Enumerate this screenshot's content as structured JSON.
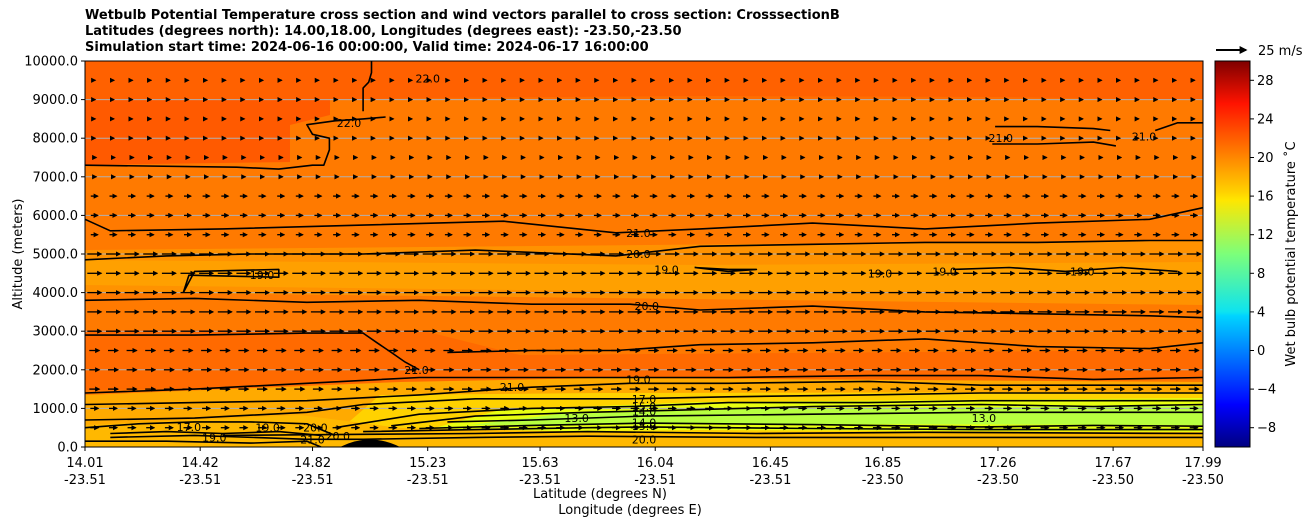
{
  "title_lines": [
    "Wetbulb Potential Temperature cross section and wind vectors parallel to cross section: CrosssectionB",
    "Latitudes (degrees north): 14.00,18.00, Longitudes (degrees east): -23.50,-23.50",
    "Simulation start time: 2024-06-16 00:00:00, Valid time: 2024-06-17 16:00:00"
  ],
  "chart_data": {
    "type": "heatmap",
    "subtype": "filled contour cross section with wind vectors",
    "ylabel": "Altitude (meters)",
    "xlabel_lines": [
      "Latitude (degrees N)",
      "Longitude (degrees E)"
    ],
    "ylim": [
      0,
      10000
    ],
    "y_ticks": [
      "0.0",
      "1000.0",
      "2000.0",
      "3000.0",
      "4000.0",
      "5000.0",
      "6000.0",
      "7000.0",
      "8000.0",
      "9000.0",
      "10000.0"
    ],
    "x_ticks": [
      {
        "lat": "14.01",
        "lon": "-23.51"
      },
      {
        "lat": "14.42",
        "lon": "-23.51"
      },
      {
        "lat": "14.82",
        "lon": "-23.51"
      },
      {
        "lat": "15.23",
        "lon": "-23.51"
      },
      {
        "lat": "15.63",
        "lon": "-23.51"
      },
      {
        "lat": "16.04",
        "lon": "-23.51"
      },
      {
        "lat": "16.45",
        "lon": "-23.51"
      },
      {
        "lat": "16.85",
        "lon": "-23.50"
      },
      {
        "lat": "17.26",
        "lon": "-23.50"
      },
      {
        "lat": "17.67",
        "lon": "-23.50"
      },
      {
        "lat": "17.99",
        "lon": "-23.50"
      }
    ],
    "grid": "horizontal",
    "colorbar": {
      "label": "Wet bulb potential temperature $^\\circ$C",
      "label_display": "Wet bulb potential temperature ˚C",
      "range": [
        -10,
        30
      ],
      "ticks": [
        "−8",
        "−4",
        "0",
        "4",
        "8",
        "12",
        "16",
        "20",
        "24",
        "28"
      ],
      "colormap": "jet"
    },
    "quiver_key": {
      "label": "25 m/s",
      "speed_ms": 25
    },
    "contour_labels": [
      {
        "text": "22.0",
        "x": 15.23,
        "y": 9550
      },
      {
        "text": "22.0",
        "x": 14.95,
        "y": 8400
      },
      {
        "text": "21.0",
        "x": 17.27,
        "y": 8000
      },
      {
        "text": "21.0",
        "x": 17.78,
        "y": 8050
      },
      {
        "text": "21.0",
        "x": 15.98,
        "y": 5550
      },
      {
        "text": "20.0",
        "x": 15.98,
        "y": 5000
      },
      {
        "text": "19.0",
        "x": 14.64,
        "y": 4450
      },
      {
        "text": "19.0",
        "x": 16.08,
        "y": 4600
      },
      {
        "text": "19.0",
        "x": 16.84,
        "y": 4500
      },
      {
        "text": "19.0",
        "x": 17.07,
        "y": 4550
      },
      {
        "text": "19.0",
        "x": 17.56,
        "y": 4550
      },
      {
        "text": "20.0",
        "x": 16.01,
        "y": 3650
      },
      {
        "text": "21.0",
        "x": 15.19,
        "y": 2000
      },
      {
        "text": "21.0",
        "x": 15.53,
        "y": 1550
      },
      {
        "text": "19.0",
        "x": 15.98,
        "y": 1750
      },
      {
        "text": "17.0",
        "x": 16.0,
        "y": 1250
      },
      {
        "text": "15.0",
        "x": 16.0,
        "y": 1050
      },
      {
        "text": "14.0",
        "x": 16.0,
        "y": 920
      },
      {
        "text": "13.0",
        "x": 15.76,
        "y": 750
      },
      {
        "text": "14.0",
        "x": 16.0,
        "y": 640
      },
      {
        "text": "15.0",
        "x": 16.0,
        "y": 540
      },
      {
        "text": "20.0",
        "x": 16.0,
        "y": 200
      },
      {
        "text": "17.0",
        "x": 14.38,
        "y": 520
      },
      {
        "text": "19.0",
        "x": 14.47,
        "y": 240
      },
      {
        "text": "19.0",
        "x": 14.66,
        "y": 500
      },
      {
        "text": "20.0",
        "x": 14.83,
        "y": 500
      },
      {
        "text": "21.0",
        "x": 14.82,
        "y": 200
      },
      {
        "text": "20.0",
        "x": 14.91,
        "y": 280
      },
      {
        "text": "13.0",
        "x": 17.21,
        "y": 750
      }
    ],
    "series": [
      {
        "level": 22.0,
        "x": [
          14.01,
          14.55,
          14.7,
          14.82,
          14.86,
          14.88,
          14.88,
          14.82,
          14.8,
          14.9,
          15.0,
          15.08
        ],
        "y": [
          7300,
          7250,
          7200,
          7300,
          7300,
          7700,
          8000,
          8100,
          8350,
          8450,
          8500,
          8550
        ]
      },
      {
        "level": 22.0,
        "x": [
          15.0,
          15.0,
          15.02,
          15.03,
          15.03
        ],
        "y": [
          8700,
          9300,
          9450,
          9700,
          10000
        ]
      },
      {
        "level": 21.0,
        "x": [
          14.01,
          14.1,
          14.5,
          15.0,
          15.5,
          15.9,
          16.2,
          16.6,
          17.0,
          17.4,
          17.8,
          17.99
        ],
        "y": [
          5900,
          5600,
          5650,
          5750,
          5850,
          5550,
          5650,
          5800,
          5650,
          5800,
          5900,
          6200
        ]
      },
      {
        "level": 21.0,
        "x": [
          17.24,
          17.4,
          17.6,
          17.68
        ],
        "y": [
          7850,
          7850,
          7900,
          7800
        ]
      },
      {
        "level": 21.0,
        "x": [
          17.25,
          17.4,
          17.6,
          17.66
        ],
        "y": [
          8300,
          8300,
          8250,
          8200
        ]
      },
      {
        "level": 21.0,
        "x": [
          17.82,
          17.9,
          17.99
        ],
        "y": [
          8200,
          8400,
          8400
        ]
      },
      {
        "level": 20.0,
        "x": [
          14.01,
          14.3,
          14.6,
          15.0,
          15.4,
          15.9,
          16.2,
          16.6,
          17.0,
          17.4,
          17.8,
          17.99
        ],
        "y": [
          4850,
          4950,
          5000,
          5000,
          5100,
          4950,
          5200,
          5250,
          5300,
          5300,
          5350,
          5350
        ]
      },
      {
        "level": 20.0,
        "x": [
          14.01,
          14.4,
          14.8,
          15.2,
          15.6,
          15.95,
          16.2,
          16.6,
          17.0,
          17.4,
          17.8,
          17.99
        ],
        "y": [
          3800,
          3850,
          3750,
          3800,
          3700,
          3700,
          3550,
          3650,
          3500,
          3450,
          3400,
          3350
        ]
      },
      {
        "level": 19.0,
        "x": [
          14.36,
          14.4,
          14.7,
          14.7,
          14.38,
          14.36
        ],
        "y": [
          4000,
          4550,
          4600,
          4400,
          4450,
          4000
        ]
      },
      {
        "level": 19.0,
        "x": [
          16.18,
          16.3,
          16.4,
          16.3,
          16.18
        ],
        "y": [
          4650,
          4600,
          4600,
          4550,
          4650
        ]
      },
      {
        "level": 19.0,
        "x": [
          17.1,
          17.3,
          17.5,
          17.7,
          17.9
        ],
        "y": [
          4600,
          4650,
          4550,
          4650,
          4550
        ]
      },
      {
        "level": 21.0,
        "x": [
          14.01,
          14.4,
          14.8,
          15.0,
          15.05,
          15.1,
          15.15,
          15.2
        ],
        "y": [
          2900,
          2900,
          2950,
          2950,
          2700,
          2450,
          2200,
          2000
        ]
      },
      {
        "level": 21.0,
        "x": [
          15.3,
          15.6,
          15.9,
          16.2,
          16.6,
          17.0,
          17.4,
          17.8,
          17.99
        ],
        "y": [
          2450,
          2500,
          2500,
          2650,
          2700,
          2800,
          2600,
          2550,
          2700
        ]
      },
      {
        "level": 20.0,
        "x": [
          14.01,
          14.4,
          14.8,
          15.2,
          15.6,
          15.95,
          16.3,
          16.8,
          17.2,
          17.6,
          17.99
        ],
        "y": [
          1400,
          1500,
          1650,
          1800,
          1800,
          1800,
          1800,
          1850,
          1850,
          1750,
          1800
        ]
      },
      {
        "level": 19.0,
        "x": [
          14.01,
          14.4,
          14.8,
          15.2,
          15.6,
          15.95,
          16.3,
          16.8,
          17.2,
          17.6,
          17.99
        ],
        "y": [
          1100,
          1150,
          1200,
          1350,
          1550,
          1650,
          1650,
          1700,
          1600,
          1600,
          1600
        ]
      },
      {
        "level": 17.0,
        "x": [
          14.01,
          14.4,
          14.8,
          15.0,
          15.4,
          15.95,
          16.3,
          16.8,
          17.2,
          17.6,
          17.99
        ],
        "y": [
          700,
          750,
          900,
          1100,
          1250,
          1250,
          1300,
          1350,
          1400,
          1400,
          1400
        ]
      },
      {
        "level": 15.0,
        "x": [
          14.9,
          15.2,
          15.6,
          15.95,
          16.3,
          16.8,
          17.2,
          17.6,
          17.99
        ],
        "y": [
          500,
          850,
          1000,
          1050,
          1150,
          1150,
          1200,
          1200,
          1200
        ]
      },
      {
        "level": 14.0,
        "x": [
          15.1,
          15.4,
          15.8,
          16.1,
          16.6,
          17.2,
          17.6,
          17.99
        ],
        "y": [
          550,
          800,
          900,
          950,
          1050,
          1100,
          1050,
          1100
        ]
      },
      {
        "level": 13.0,
        "x": [
          15.3,
          15.6,
          16.0,
          16.6,
          17.2,
          17.6,
          17.99
        ],
        "y": [
          650,
          700,
          800,
          850,
          900,
          900,
          900
        ]
      },
      {
        "level": 14.0,
        "x": [
          15.2,
          15.6,
          16.0,
          16.6,
          17.2,
          17.6,
          17.99
        ],
        "y": [
          480,
          560,
          620,
          580,
          520,
          560,
          540
        ]
      },
      {
        "level": 15.0,
        "x": [
          15.0,
          15.4,
          15.8,
          16.0,
          16.6,
          17.2,
          17.99
        ],
        "y": [
          400,
          450,
          500,
          520,
          480,
          450,
          450
        ]
      },
      {
        "level": 17.0,
        "x": [
          14.5,
          15.0,
          15.4,
          15.8,
          16.4,
          17.0,
          17.6,
          17.99
        ],
        "y": [
          300,
          330,
          350,
          400,
          350,
          380,
          360,
          350
        ]
      },
      {
        "level": 19.0,
        "x": [
          14.1,
          14.4,
          14.8,
          15.0,
          15.4,
          15.8,
          16.4,
          17.0,
          17.6,
          17.99
        ],
        "y": [
          250,
          300,
          200,
          200,
          250,
          280,
          250,
          250,
          250,
          250
        ]
      },
      {
        "level": 20.0,
        "x": [
          14.01,
          14.2,
          14.4,
          14.6,
          14.8,
          14.9
        ],
        "y": [
          500,
          600,
          650,
          650,
          600,
          300
        ]
      },
      {
        "level": 19.0,
        "x": [
          14.1,
          14.3,
          14.5,
          14.7,
          14.85
        ],
        "y": [
          350,
          400,
          350,
          400,
          300
        ]
      },
      {
        "level": 21.0,
        "x": [
          14.01,
          14.3,
          14.6,
          14.8,
          14.85
        ],
        "y": [
          150,
          150,
          100,
          150,
          0
        ]
      }
    ]
  }
}
